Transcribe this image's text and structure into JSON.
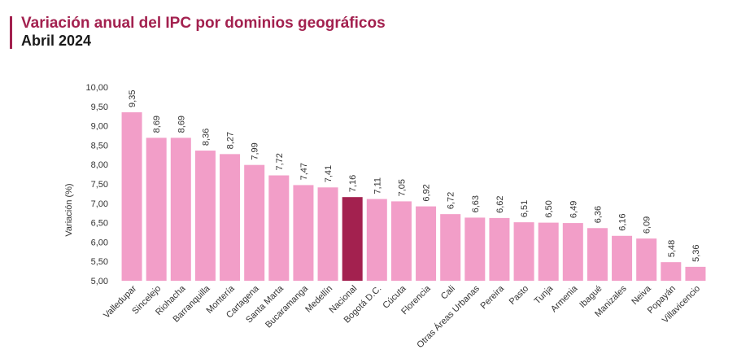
{
  "header": {
    "title": "Variación anual del IPC por dominios geográficos",
    "subtitle": "Abril 2024"
  },
  "colors": {
    "title": "#a3214f",
    "bar": "#f29ec8",
    "highlight_bar": "#a3214f",
    "text": "#333333"
  },
  "chart_data": {
    "type": "bar",
    "title": "Variación anual del IPC por dominios geográficos",
    "subtitle": "Abril 2024",
    "xlabel": "",
    "ylabel": "Variación (%)",
    "ylim": [
      5.0,
      10.0
    ],
    "yticks": [
      "5,00",
      "5,50",
      "6,00",
      "6,50",
      "7,00",
      "7,50",
      "8,00",
      "8,50",
      "9,00",
      "9,50",
      "10,00"
    ],
    "grid": false,
    "legend": "none",
    "highlight": "Nacional",
    "categories": [
      "Valledupar",
      "Sincelejo",
      "Riohacha",
      "Barranquilla",
      "Montería",
      "Cartagena",
      "Santa Marta",
      "Bucaramanga",
      "Medellín",
      "Nacional",
      "Bogotá D.C.",
      "Cúcuta",
      "Florencia",
      "Cali",
      "Otras Áreas Urbanas",
      "Pereira",
      "Pasto",
      "Tunja",
      "Armenia",
      "Ibagué",
      "Manizales",
      "Neiva",
      "Popayán",
      "Villavicencio"
    ],
    "values": [
      9.35,
      8.69,
      8.69,
      8.36,
      8.27,
      7.99,
      7.72,
      7.47,
      7.41,
      7.16,
      7.11,
      7.05,
      6.92,
      6.72,
      6.63,
      6.62,
      6.51,
      6.5,
      6.49,
      6.36,
      6.16,
      6.09,
      5.48,
      5.36
    ],
    "value_labels": [
      "9,35",
      "8,69",
      "8,69",
      "8,36",
      "8,27",
      "7,99",
      "7,72",
      "7,47",
      "7,41",
      "7,16",
      "7,11",
      "7,05",
      "6,92",
      "6,72",
      "6,63",
      "6,62",
      "6,51",
      "6,50",
      "6,49",
      "6,36",
      "6,16",
      "6,09",
      "5,48",
      "5,36"
    ]
  }
}
